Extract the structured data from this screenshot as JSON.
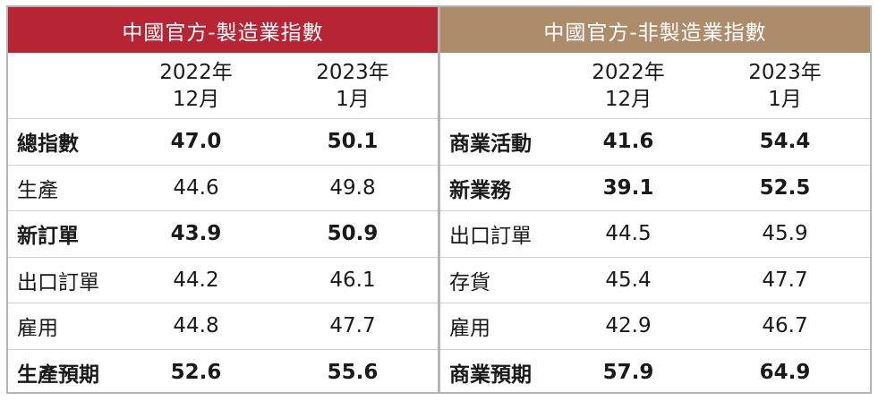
{
  "manufacturing": {
    "title": "中國官方-製造業指數",
    "col_a": [
      "2022年",
      "12月"
    ],
    "col_b": [
      "2023年",
      "1月"
    ],
    "rows": [
      {
        "label": "總指數",
        "a": "47.0",
        "b": "50.1",
        "bold": true
      },
      {
        "label": "生產",
        "a": "44.6",
        "b": "49.8",
        "bold": false
      },
      {
        "label": "新訂單",
        "a": "43.9",
        "b": "50.9",
        "bold": true
      },
      {
        "label": "出口訂單",
        "a": "44.2",
        "b": "46.1",
        "bold": false
      },
      {
        "label": "雇用",
        "a": "44.8",
        "b": "47.7",
        "bold": false
      },
      {
        "label": "生產預期",
        "a": "52.6",
        "b": "55.6",
        "bold": true
      }
    ]
  },
  "non_manufacturing": {
    "title": "中國官方-非製造業指數",
    "col_a": [
      "2022年",
      "12月"
    ],
    "col_b": [
      "2023年",
      "1月"
    ],
    "rows": [
      {
        "label": "商業活動",
        "a": "41.6",
        "b": "54.4",
        "bold": true
      },
      {
        "label": "新業務",
        "a": "39.1",
        "b": "52.5",
        "bold": true
      },
      {
        "label": "出口訂單",
        "a": "44.5",
        "b": "45.9",
        "bold": false
      },
      {
        "label": "存貨",
        "a": "45.4",
        "b": "47.7",
        "bold": false
      },
      {
        "label": "雇用",
        "a": "42.9",
        "b": "46.7",
        "bold": false
      },
      {
        "label": "商業預期",
        "a": "57.9",
        "b": "64.9",
        "bold": true
      }
    ]
  },
  "colors": {
    "manufacturing_header": "#b72534",
    "non_manufacturing_header": "#ad8c6c"
  }
}
